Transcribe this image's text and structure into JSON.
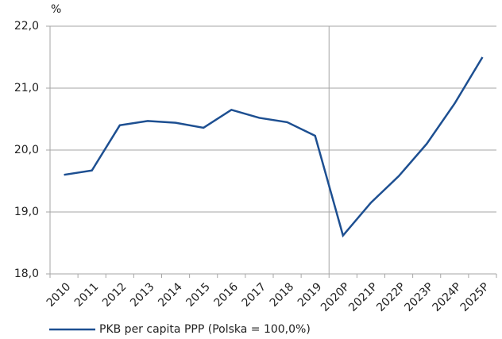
{
  "chart_data": {
    "type": "line",
    "y_label": "%",
    "categories": [
      "2010",
      "2011",
      "2012",
      "2013",
      "2014",
      "2015",
      "2016",
      "2017",
      "2018",
      "2019",
      "2020P",
      "2021P",
      "2022P",
      "2023P",
      "2024P",
      "2025P"
    ],
    "series": [
      {
        "name": "PKB per capita PPP (Polska = 100,0%)",
        "color": "#1d4f91",
        "values": [
          19.6,
          19.67,
          20.4,
          20.47,
          20.44,
          20.36,
          20.65,
          20.52,
          20.45,
          20.23,
          18.62,
          19.15,
          19.58,
          20.1,
          20.75,
          21.5
        ]
      }
    ],
    "ylim": [
      18,
      22
    ],
    "yticks": [
      {
        "value": 18,
        "label": "18,0"
      },
      {
        "value": 19,
        "label": "19,0"
      },
      {
        "value": 20,
        "label": "20,0"
      },
      {
        "value": 21,
        "label": "21,0"
      },
      {
        "value": 22,
        "label": "22,0"
      }
    ],
    "grid": true
  }
}
